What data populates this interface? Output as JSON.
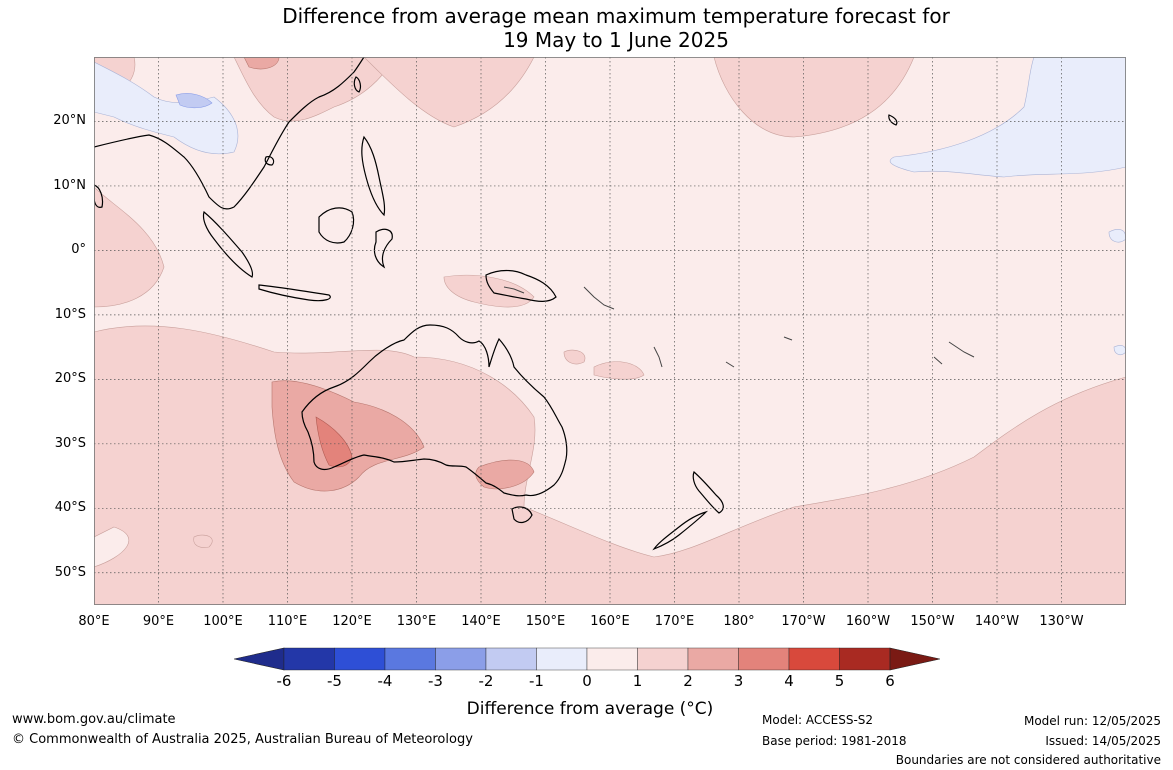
{
  "title": {
    "line1": "Difference from average mean maximum temperature forecast for",
    "line2": "19 May to 1 June 2025"
  },
  "map": {
    "lon_range": [
      80,
      240
    ],
    "lat_range": [
      -55,
      30
    ],
    "latitude_labels": [
      "20°N",
      "10°N",
      "0°",
      "10°S",
      "20°S",
      "30°S",
      "40°S",
      "50°S"
    ],
    "longitude_labels": [
      "80°E",
      "90°E",
      "100°E",
      "110°E",
      "120°E",
      "130°E",
      "140°E",
      "150°E",
      "160°E",
      "170°E",
      "180°",
      "170°W",
      "160°W",
      "150°W",
      "140°W",
      "130°W"
    ],
    "gridlines": "dotted"
  },
  "colorbar": {
    "ticks": [
      "-6",
      "-5",
      "-4",
      "-3",
      "-2",
      "-1",
      "0",
      "1",
      "2",
      "3",
      "4",
      "5",
      "6"
    ],
    "colors": [
      "#1f2c8c",
      "#2337a8",
      "#2e4fd6",
      "#5a78e0",
      "#8b9ee8",
      "#c2cbf2",
      "#e9edfb",
      "#fbeceb",
      "#f5d2d0",
      "#eaa9a4",
      "#e3837b",
      "#d8493c",
      "#a92a22",
      "#7a1a14"
    ],
    "label": "Difference from average (°C)"
  },
  "footer": {
    "website": "www.bom.gov.au/climate",
    "copyright": "© Commonwealth of Australia 2025, Australian Bureau of Meteorology",
    "model": "Model: ACCESS-S2",
    "base_period": "Base period: 1981-2018",
    "model_run": "Model run: 12/05/2025",
    "issued": "Issued: 14/05/2025",
    "boundaries_note": "Boundaries are not considered authoritative"
  }
}
